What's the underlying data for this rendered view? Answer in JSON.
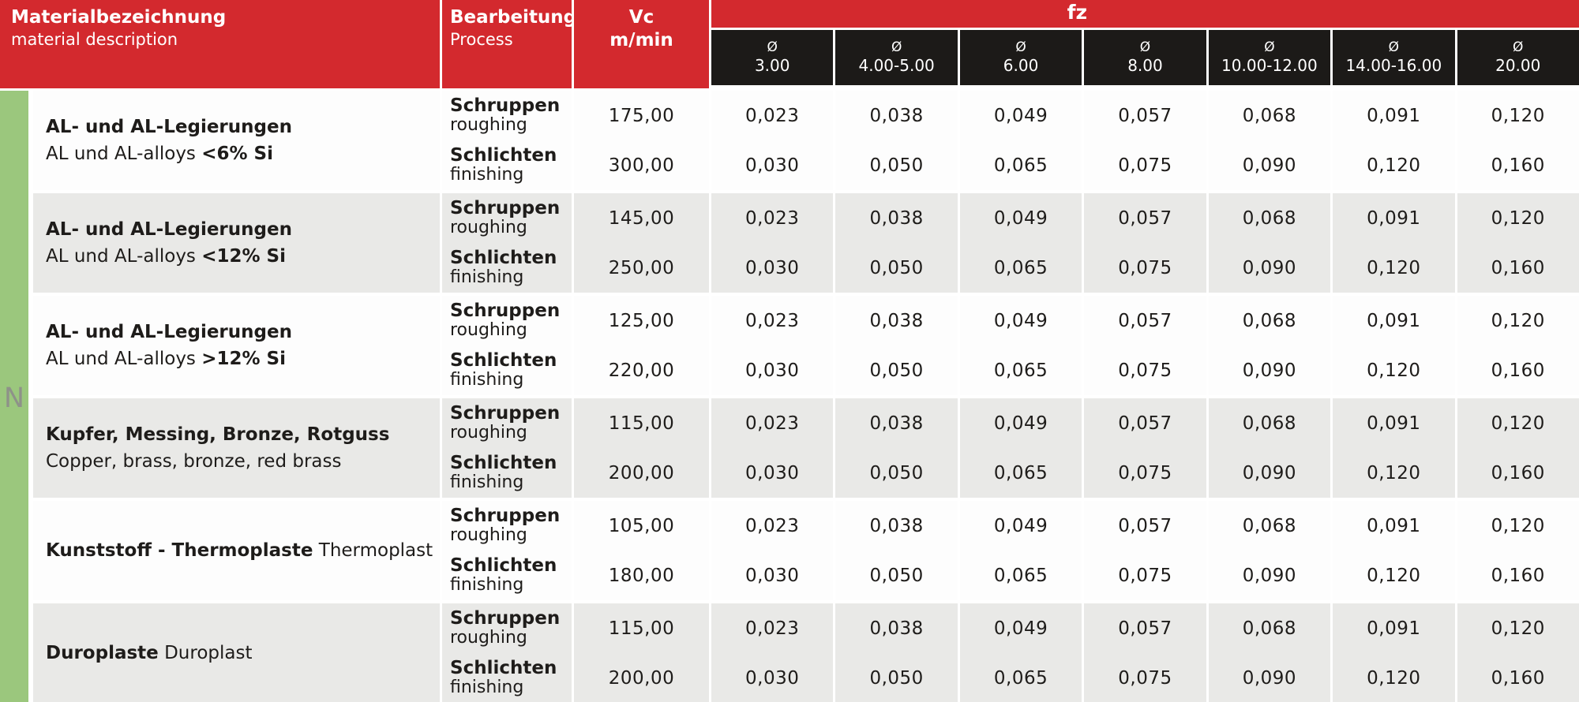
{
  "header": {
    "material": {
      "title_de": "Materialbezeichnung",
      "title_en": "material description"
    },
    "process": {
      "title_de": "Bearbeitung",
      "title_en": "Process"
    },
    "vc": {
      "symbol": "Vc",
      "unit": "m/min"
    },
    "fz_label": "fz",
    "diameter_symbol": "Ø",
    "diameters": [
      "3.00",
      "4.00-5.00",
      "6.00",
      "8.00",
      "10.00-12.00",
      "14.00-16.00",
      "20.00"
    ]
  },
  "iso_material_group": "N",
  "colors": {
    "red": "#d3292e",
    "black_header": "#1c1a18",
    "green_bar": "#9bc77d",
    "row_gray": "#e9e9e7",
    "text": "#1e1c1a"
  },
  "groups": [
    {
      "material": {
        "l1b": "AL- und AL-Legierungen",
        "l1r": "",
        "l2r": "AL und AL-alloys ",
        "l2b": "<6% Si"
      },
      "rows": [
        {
          "process_de": "Schruppen",
          "process_en": "roughing",
          "vc": "175,00",
          "fz": [
            "0,023",
            "0,038",
            "0,049",
            "0,057",
            "0,068",
            "0,091",
            "0,120"
          ]
        },
        {
          "process_de": "Schlichten",
          "process_en": "finishing",
          "vc": "300,00",
          "fz": [
            "0,030",
            "0,050",
            "0,065",
            "0,075",
            "0,090",
            "0,120",
            "0,160"
          ]
        }
      ]
    },
    {
      "material": {
        "l1b": "AL- und AL-Legierungen",
        "l1r": "",
        "l2r": "AL und AL-alloys ",
        "l2b": "<12% Si"
      },
      "rows": [
        {
          "process_de": "Schruppen",
          "process_en": "roughing",
          "vc": "145,00",
          "fz": [
            "0,023",
            "0,038",
            "0,049",
            "0,057",
            "0,068",
            "0,091",
            "0,120"
          ]
        },
        {
          "process_de": "Schlichten",
          "process_en": "finishing",
          "vc": "250,00",
          "fz": [
            "0,030",
            "0,050",
            "0,065",
            "0,075",
            "0,090",
            "0,120",
            "0,160"
          ]
        }
      ]
    },
    {
      "material": {
        "l1b": "AL- und AL-Legierungen",
        "l1r": "",
        "l2r": "AL und AL-alloys ",
        "l2b": ">12% Si"
      },
      "rows": [
        {
          "process_de": "Schruppen",
          "process_en": "roughing",
          "vc": "125,00",
          "fz": [
            "0,023",
            "0,038",
            "0,049",
            "0,057",
            "0,068",
            "0,091",
            "0,120"
          ]
        },
        {
          "process_de": "Schlichten",
          "process_en": "finishing",
          "vc": "220,00",
          "fz": [
            "0,030",
            "0,050",
            "0,065",
            "0,075",
            "0,090",
            "0,120",
            "0,160"
          ]
        }
      ]
    },
    {
      "material": {
        "l1b": "Kupfer, Messing, Bronze, Rotguss",
        "l1r": "",
        "l2r": "Copper, brass, bronze, red brass",
        "l2b": ""
      },
      "rows": [
        {
          "process_de": "Schruppen",
          "process_en": "roughing",
          "vc": "115,00",
          "fz": [
            "0,023",
            "0,038",
            "0,049",
            "0,057",
            "0,068",
            "0,091",
            "0,120"
          ]
        },
        {
          "process_de": "Schlichten",
          "process_en": "finishing",
          "vc": "200,00",
          "fz": [
            "0,030",
            "0,050",
            "0,065",
            "0,075",
            "0,090",
            "0,120",
            "0,160"
          ]
        }
      ]
    },
    {
      "material": {
        "l1b": "Kunststoff - Thermoplaste",
        "l1r": " Thermoplast",
        "l2r": "",
        "l2b": ""
      },
      "rows": [
        {
          "process_de": "Schruppen",
          "process_en": "roughing",
          "vc": "105,00",
          "fz": [
            "0,023",
            "0,038",
            "0,049",
            "0,057",
            "0,068",
            "0,091",
            "0,120"
          ]
        },
        {
          "process_de": "Schlichten",
          "process_en": "finishing",
          "vc": "180,00",
          "fz": [
            "0,030",
            "0,050",
            "0,065",
            "0,075",
            "0,090",
            "0,120",
            "0,160"
          ]
        }
      ]
    },
    {
      "material": {
        "l1b": "Duroplaste",
        "l1r": " Duroplast",
        "l2r": "",
        "l2b": ""
      },
      "rows": [
        {
          "process_de": "Schruppen",
          "process_en": "roughing",
          "vc": "115,00",
          "fz": [
            "0,023",
            "0,038",
            "0,049",
            "0,057",
            "0,068",
            "0,091",
            "0,120"
          ]
        },
        {
          "process_de": "Schlichten",
          "process_en": "finishing",
          "vc": "200,00",
          "fz": [
            "0,030",
            "0,050",
            "0,065",
            "0,075",
            "0,090",
            "0,120",
            "0,160"
          ]
        }
      ]
    }
  ]
}
